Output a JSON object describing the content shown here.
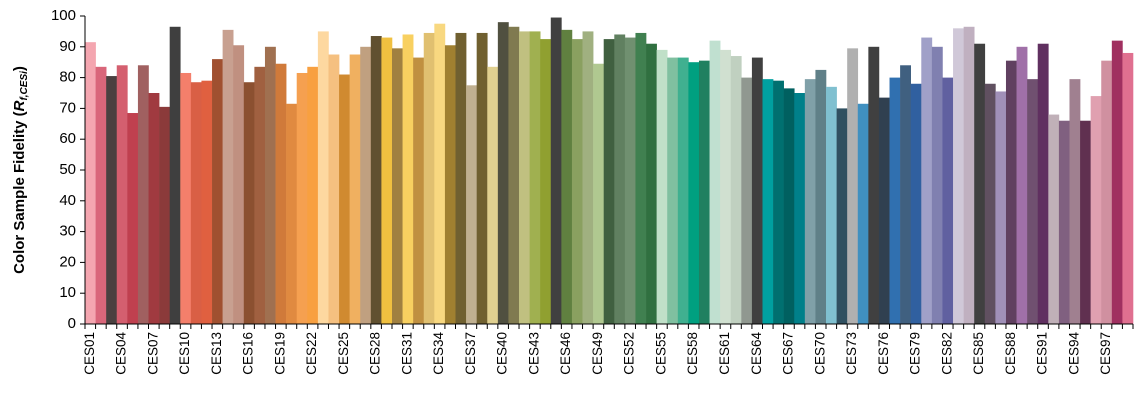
{
  "chart_data": {
    "type": "bar",
    "ylabel": {
      "text": "Color Sample Fidelity (",
      "var": "R",
      "sub": "f,CESi",
      "close": ")"
    },
    "categories": [
      "CES01",
      null,
      null,
      "CES04",
      null,
      null,
      "CES07",
      null,
      null,
      "CES10",
      null,
      null,
      "CES13",
      null,
      null,
      "CES16",
      null,
      null,
      "CES19",
      null,
      null,
      "CES22",
      null,
      null,
      "CES25",
      null,
      null,
      "CES28",
      null,
      null,
      "CES31",
      null,
      null,
      "CES34",
      null,
      null,
      "CES37",
      null,
      null,
      "CES40",
      null,
      null,
      "CES43",
      null,
      null,
      "CES46",
      null,
      null,
      "CES49",
      null,
      null,
      "CES52",
      null,
      null,
      "CES55",
      null,
      null,
      "CES58",
      null,
      null,
      "CES61",
      null,
      null,
      "CES64",
      null,
      null,
      "CES67",
      null,
      null,
      "CES70",
      null,
      null,
      "CES73",
      null,
      null,
      "CES76",
      null,
      null,
      "CES79",
      null,
      null,
      "CES82",
      null,
      null,
      "CES85",
      null,
      null,
      "CES88",
      null,
      null,
      "CES91",
      null,
      null,
      "CES94",
      null,
      null,
      "CES97",
      null,
      null
    ],
    "values": [
      91.5,
      83.5,
      80.5,
      84,
      68.5,
      84,
      75,
      70.5,
      96.5,
      81.5,
      78.5,
      79,
      86,
      95.5,
      90.5,
      78.5,
      83.5,
      90,
      84.5,
      71.5,
      81.5,
      83.5,
      95,
      87.5,
      81,
      87.5,
      90,
      93.5,
      93,
      89.5,
      94,
      86.5,
      94.5,
      97.5,
      90.5,
      94.5,
      77.5,
      94.5,
      83.5,
      98,
      96.5,
      95,
      95,
      92.5,
      99.5,
      95.5,
      92.5,
      95,
      84.5,
      92.5,
      94,
      93,
      94.5,
      91,
      89,
      86.5,
      86.5,
      85,
      85.5,
      92,
      89,
      87,
      80,
      86.5,
      79.5,
      79,
      76.5,
      75,
      79.5,
      82.5,
      77,
      70,
      89.5,
      71.5,
      90,
      73.5,
      80,
      84,
      78,
      93,
      90,
      80,
      96,
      96.5,
      91,
      78,
      75.5,
      85.5,
      90,
      79.5,
      91,
      68,
      66,
      79.5,
      66,
      74,
      85.5,
      92,
      88
    ],
    "colors": [
      "#f4a6b0",
      "#d9667a",
      "#4a4040",
      "#d45f6f",
      "#c0404f",
      "#a06060",
      "#a03a40",
      "#8b3a3a",
      "#3f3f3f",
      "#f47f6b",
      "#d95f45",
      "#e06040",
      "#a05030",
      "#c8a090",
      "#c09080",
      "#8b5030",
      "#a06040",
      "#a07050",
      "#d07a3a",
      "#e08a40",
      "#f5a050",
      "#f8a040",
      "#fdd8a0",
      "#f5c080",
      "#d08a30",
      "#f0b060",
      "#c0a080",
      "#605030",
      "#f0c040",
      "#a08040",
      "#f8d060",
      "#c09040",
      "#e0c070",
      "#f8d880",
      "#a08030",
      "#706030",
      "#c0b090",
      "#706030",
      "#e0d090",
      "#505040",
      "#807a50",
      "#c0c080",
      "#a0b050",
      "#90a030",
      "#404040",
      "#608040",
      "#8aa060",
      "#a0b080",
      "#b0c890",
      "#406040",
      "#608060",
      "#709070",
      "#408050",
      "#307040",
      "#c0e0c8",
      "#80c0a0",
      "#40b090",
      "#00a080",
      "#208060",
      "#c0e0d0",
      "#d0e0d0",
      "#c0d0c0",
      "#909890",
      "#404040",
      "#00a0a0",
      "#007070",
      "#006060",
      "#00808a",
      "#80a0a8",
      "#608088",
      "#80c0d0",
      "#305060",
      "#b0b0b0",
      "#4090c0",
      "#404040",
      "#304050",
      "#3070b0",
      "#406080",
      "#3060a0",
      "#a0a0c8",
      "#8080b0",
      "#6060a0",
      "#d0c8d8",
      "#c0b0c0",
      "#404040",
      "#605060",
      "#a090b8",
      "#604060",
      "#a070a8",
      "#705070",
      "#603060",
      "#c0b0b8",
      "#806080",
      "#a08090",
      "#603050",
      "#e0a0b0",
      "#d090a0",
      "#a03060",
      "#e07090"
    ],
    "ylim": [
      0,
      100
    ],
    "yticks": [
      0,
      10,
      20,
      30,
      40,
      50,
      60,
      70,
      80,
      90,
      100
    ]
  }
}
